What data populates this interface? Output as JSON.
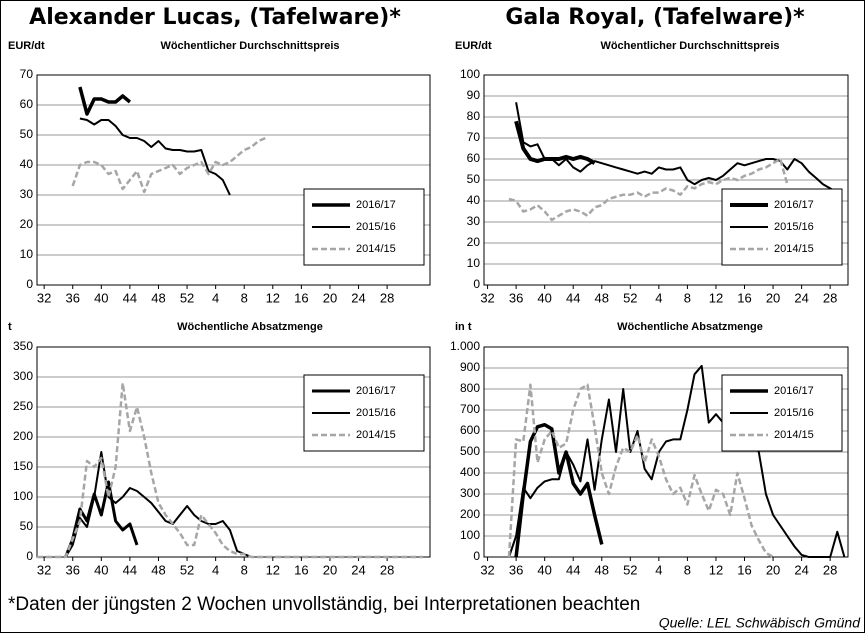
{
  "footnote": "*Daten der jüngsten 2 Wochen unvollständig, bei Interpretationen beachten",
  "source": "Quelle: LEL Schwäbisch Gmünd",
  "chart_data": [
    {
      "type": "line",
      "title": "Alexander Lucas, (Tafelware)*",
      "subtitle": "Wöchentlicher Durchschnittspreis",
      "ylabel": "EUR/dt",
      "xlim": [
        31,
        86
      ],
      "xticks": [
        32,
        36,
        40,
        44,
        48,
        52,
        {
          "value": 56,
          "label": "4"
        },
        {
          "value": 60,
          "label": "8"
        },
        {
          "value": 64,
          "label": "12"
        },
        {
          "value": 68,
          "label": "16"
        },
        {
          "value": 72,
          "label": "20"
        },
        {
          "value": 76,
          "label": "24"
        },
        {
          "value": 80,
          "label": "28"
        }
      ],
      "ylim": [
        0,
        70
      ],
      "yticks": [
        0,
        10,
        20,
        30,
        40,
        50,
        60,
        70
      ],
      "grid": true,
      "legend": "lower right",
      "series": [
        {
          "name": "2016/17",
          "color": "#000000",
          "linewidth": 3.5,
          "dashed": false,
          "x": [
            37,
            38,
            39,
            40,
            41,
            42,
            43,
            44
          ],
          "values": [
            66,
            57,
            62,
            62,
            61,
            61,
            63,
            61
          ]
        },
        {
          "name": "2015/16",
          "color": "#000000",
          "linewidth": 2,
          "dashed": false,
          "x": [
            37,
            38,
            39,
            40,
            41,
            42,
            43,
            44,
            45,
            46,
            47,
            48,
            49,
            50,
            51,
            52,
            53,
            54,
            55,
            56,
            57,
            58
          ],
          "values": [
            55.5,
            55,
            53.5,
            55,
            55,
            53,
            50,
            49,
            49,
            48,
            46,
            48,
            45.5,
            45,
            45,
            44.5,
            44.5,
            45,
            38,
            37,
            35,
            30
          ]
        },
        {
          "name": "2014/15",
          "color": "#a6a6a6",
          "linewidth": 2.5,
          "dashed": true,
          "x": [
            36,
            37,
            38,
            39,
            40,
            41,
            42,
            43,
            44,
            45,
            46,
            47,
            48,
            49,
            50,
            51,
            52,
            53,
            54,
            55,
            56,
            57,
            58,
            59,
            60,
            61,
            62,
            63
          ],
          "values": [
            33,
            40,
            41,
            41,
            40,
            37,
            38,
            32,
            35,
            38,
            31,
            37,
            38,
            39,
            40,
            37,
            39,
            40,
            41,
            37,
            41,
            40,
            41,
            43,
            45,
            46,
            48,
            49
          ]
        }
      ]
    },
    {
      "type": "line",
      "title": "Gala Royal, (Tafelware)*",
      "subtitle": "Wöchentlicher Durchschnittspreis",
      "ylabel": "EUR/dt",
      "xlim": [
        31.5,
        82.5
      ],
      "xticks": [
        32,
        36,
        40,
        44,
        48,
        52,
        {
          "value": 56,
          "label": "4"
        },
        {
          "value": 60,
          "label": "8"
        },
        {
          "value": 64,
          "label": "12"
        },
        {
          "value": 68,
          "label": "16"
        },
        {
          "value": 72,
          "label": "20"
        },
        {
          "value": 76,
          "label": "24"
        },
        {
          "value": 80,
          "label": "28"
        }
      ],
      "ylim": [
        0,
        100
      ],
      "yticks": [
        0,
        10,
        20,
        30,
        40,
        50,
        60,
        70,
        80,
        90,
        100
      ],
      "grid": true,
      "legend": "lower right",
      "series": [
        {
          "name": "2016/17",
          "color": "#000000",
          "linewidth": 4,
          "dashed": false,
          "x": [
            36,
            37,
            38,
            39,
            40,
            41,
            42,
            43,
            44,
            45,
            46,
            47
          ],
          "values": [
            78,
            65,
            60,
            59,
            60,
            60,
            60,
            61,
            60,
            61,
            60,
            58
          ]
        },
        {
          "name": "2015/16",
          "color": "#000000",
          "linewidth": 2,
          "dashed": false,
          "x": [
            36,
            37,
            38,
            39,
            40,
            41,
            42,
            43,
            44,
            45,
            46,
            47,
            48,
            49,
            50,
            51,
            52,
            53,
            54,
            55,
            56,
            57,
            58,
            59,
            60,
            61,
            62,
            63,
            64,
            65,
            66,
            67,
            68,
            69,
            70,
            71,
            72,
            73,
            74,
            75,
            76,
            77,
            78,
            79,
            80,
            81
          ],
          "values": [
            87,
            68,
            66,
            67,
            60,
            60,
            57,
            60,
            56,
            54,
            57,
            59,
            58,
            57,
            56,
            55,
            54,
            53,
            54,
            53,
            56,
            55,
            55,
            56,
            50,
            48,
            50,
            51,
            50,
            52,
            55,
            58,
            57,
            58,
            59,
            60,
            60,
            59,
            55,
            60,
            58,
            54,
            51,
            48,
            46,
            44
          ]
        },
        {
          "name": "2014/15",
          "color": "#a6a6a6",
          "linewidth": 2.5,
          "dashed": true,
          "x": [
            35,
            36,
            37,
            38,
            39,
            40,
            41,
            42,
            43,
            44,
            45,
            46,
            47,
            48,
            49,
            50,
            51,
            52,
            53,
            54,
            55,
            56,
            57,
            58,
            59,
            60,
            61,
            62,
            63,
            64,
            65,
            66,
            67,
            68,
            69,
            70,
            71,
            72,
            73,
            74
          ],
          "values": [
            41,
            40,
            35,
            36,
            38,
            35,
            31,
            33,
            35,
            36,
            35,
            33,
            37,
            38,
            41,
            42,
            43,
            43,
            44,
            42,
            44,
            44,
            46,
            45,
            43,
            47,
            46,
            48,
            49,
            48,
            50,
            51,
            50,
            52,
            53,
            55,
            56,
            58,
            60,
            48
          ]
        }
      ]
    },
    {
      "type": "line",
      "subtitle": "Wöchentliche Absatzmenge",
      "ylabel": "t",
      "xlim": [
        31,
        86
      ],
      "xticks": [
        32,
        36,
        40,
        44,
        48,
        52,
        {
          "value": 56,
          "label": "4"
        },
        {
          "value": 60,
          "label": "8"
        },
        {
          "value": 64,
          "label": "12"
        },
        {
          "value": 68,
          "label": "16"
        },
        {
          "value": 72,
          "label": "20"
        },
        {
          "value": 76,
          "label": "24"
        },
        {
          "value": 80,
          "label": "28"
        }
      ],
      "ylim": [
        0,
        350
      ],
      "yticks": [
        0,
        50,
        100,
        150,
        200,
        250,
        300,
        350
      ],
      "grid": true,
      "legend": "upper right",
      "series": [
        {
          "name": "2016/17",
          "color": "#000000",
          "linewidth": 3,
          "dashed": false,
          "x": [
            35,
            36,
            37,
            38,
            39,
            40,
            41,
            42,
            43,
            44,
            45
          ],
          "values": [
            0,
            30,
            80,
            60,
            105,
            70,
            125,
            60,
            45,
            55,
            20
          ]
        },
        {
          "name": "2015/16",
          "color": "#000000",
          "linewidth": 2,
          "dashed": false,
          "x": [
            35,
            36,
            37,
            38,
            39,
            40,
            41,
            42,
            43,
            44,
            45,
            46,
            47,
            48,
            49,
            50,
            51,
            52,
            53,
            54,
            55,
            56,
            57,
            58,
            59,
            60,
            61
          ],
          "values": [
            0,
            20,
            65,
            50,
            100,
            175,
            100,
            90,
            100,
            115,
            110,
            100,
            90,
            75,
            60,
            55,
            70,
            85,
            70,
            60,
            55,
            55,
            60,
            45,
            10,
            5,
            0
          ]
        },
        {
          "name": "2014/15",
          "color": "#a6a6a6",
          "linewidth": 2.5,
          "dashed": true,
          "x": [
            31,
            35,
            36,
            37,
            38,
            39,
            40,
            41,
            42,
            43,
            44,
            45,
            46,
            47,
            48,
            49,
            50,
            51,
            52,
            53,
            54,
            55,
            56,
            57,
            58,
            59,
            60,
            61,
            85
          ],
          "values": [
            0,
            0,
            30,
            60,
            160,
            150,
            165,
            100,
            150,
            290,
            210,
            250,
            200,
            140,
            90,
            70,
            55,
            40,
            20,
            20,
            70,
            55,
            40,
            20,
            10,
            5,
            5,
            0,
            0
          ]
        }
      ]
    },
    {
      "type": "line",
      "subtitle": "Wöchentliche Absatzmenge",
      "ylabel": "in t",
      "xlim": [
        31.5,
        82.5
      ],
      "xticks": [
        32,
        36,
        40,
        44,
        48,
        52,
        {
          "value": 56,
          "label": "4"
        },
        {
          "value": 60,
          "label": "8"
        },
        {
          "value": 64,
          "label": "12"
        },
        {
          "value": 68,
          "label": "16"
        },
        {
          "value": 72,
          "label": "20"
        },
        {
          "value": 76,
          "label": "24"
        },
        {
          "value": 80,
          "label": "28"
        }
      ],
      "ylim": [
        0,
        1000
      ],
      "yticks": [
        0,
        100,
        200,
        300,
        400,
        500,
        600,
        700,
        800,
        900,
        {
          "value": 1000,
          "label": "1.000"
        }
      ],
      "grid": true,
      "legend": "upper right",
      "series": [
        {
          "name": "2016/17",
          "color": "#000000",
          "linewidth": 3.5,
          "dashed": false,
          "x": [
            36,
            37,
            38,
            39,
            40,
            41,
            42,
            43,
            44,
            45,
            46,
            47,
            48
          ],
          "values": [
            0,
            300,
            550,
            620,
            630,
            610,
            400,
            500,
            350,
            300,
            350,
            200,
            60
          ]
        },
        {
          "name": "2015/16",
          "color": "#000000",
          "linewidth": 2,
          "dashed": false,
          "x": [
            35,
            36,
            37,
            38,
            39,
            40,
            41,
            42,
            43,
            44,
            45,
            46,
            47,
            48,
            49,
            50,
            51,
            52,
            53,
            54,
            55,
            56,
            57,
            58,
            59,
            60,
            61,
            62,
            63,
            64,
            65,
            66,
            67,
            68,
            69,
            70,
            71,
            72,
            73,
            74,
            75,
            76,
            77,
            80,
            81,
            82
          ],
          "values": [
            0,
            100,
            330,
            280,
            330,
            360,
            370,
            370,
            500,
            440,
            360,
            560,
            320,
            560,
            750,
            500,
            800,
            500,
            600,
            420,
            370,
            500,
            550,
            560,
            560,
            700,
            870,
            910,
            640,
            680,
            640,
            600,
            550,
            540,
            550,
            500,
            300,
            200,
            150,
            100,
            50,
            10,
            0,
            0,
            120,
            0
          ]
        },
        {
          "name": "2014/15",
          "color": "#a6a6a6",
          "linewidth": 2.5,
          "dashed": true,
          "x": [
            35,
            36,
            37,
            38,
            39,
            40,
            41,
            42,
            43,
            44,
            45,
            46,
            47,
            48,
            49,
            50,
            51,
            52,
            53,
            54,
            55,
            56,
            57,
            58,
            59,
            60,
            61,
            62,
            63,
            64,
            65,
            66,
            67,
            68,
            69,
            70,
            71,
            72
          ],
          "values": [
            0,
            560,
            550,
            820,
            450,
            560,
            600,
            520,
            540,
            700,
            800,
            820,
            620,
            400,
            300,
            430,
            520,
            500,
            580,
            450,
            560,
            480,
            370,
            300,
            330,
            250,
            390,
            300,
            220,
            320,
            300,
            200,
            400,
            280,
            150,
            80,
            20,
            0
          ]
        }
      ]
    }
  ]
}
